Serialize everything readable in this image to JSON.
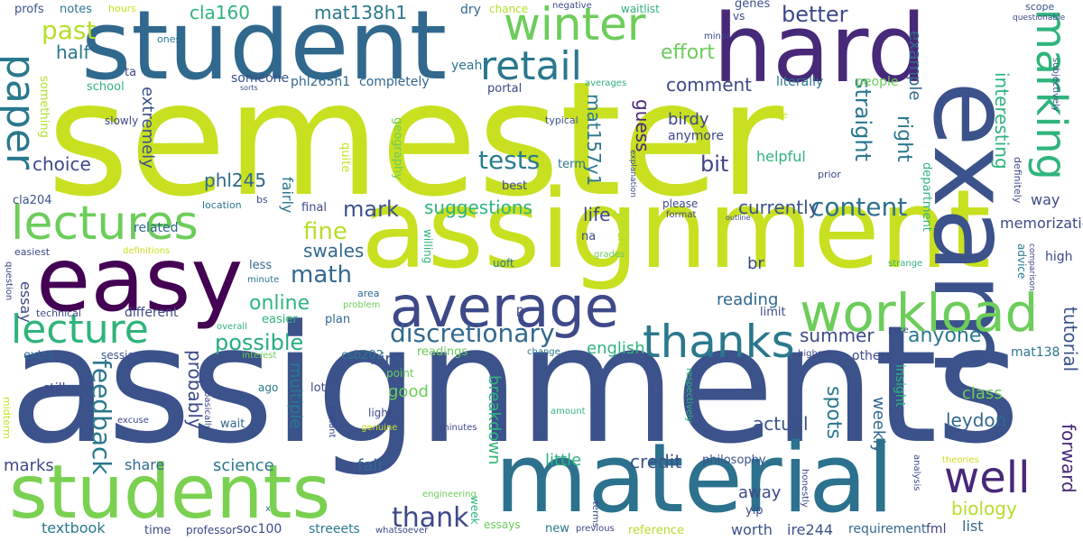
{
  "words": [
    {
      "text": "semester",
      "color": "#c8e020"
    },
    {
      "text": "assignments",
      "color": "#3b528b"
    },
    {
      "text": "assignment",
      "color": "#c8e020"
    },
    {
      "text": "student",
      "color": "#31688e"
    },
    {
      "text": "hard",
      "color": "#482878"
    },
    {
      "text": "exam",
      "color": "#3b528b"
    },
    {
      "text": "students",
      "color": "#7ad151"
    },
    {
      "text": "material",
      "color": "#2c728e"
    },
    {
      "text": "easy",
      "color": "#440154"
    },
    {
      "text": "lectures",
      "color": "#6ccd5a"
    },
    {
      "text": "average",
      "color": "#3e4989"
    },
    {
      "text": "workload",
      "color": "#6ccd5a"
    },
    {
      "text": "winter",
      "color": "#6ccd5a"
    },
    {
      "text": "retail",
      "color": "#2a788e"
    },
    {
      "text": "paper",
      "color": "#2a788e"
    },
    {
      "text": "lecture",
      "color": "#2fb47c"
    },
    {
      "text": "marking",
      "color": "#2fb47c"
    },
    {
      "text": "thanks",
      "color": "#2a788e"
    },
    {
      "text": "well",
      "color": "#482878"
    },
    {
      "text": "content",
      "color": "#2d708e"
    },
    {
      "text": "discretionary",
      "color": "#31688e"
    },
    {
      "text": "possible",
      "color": "#27ad81"
    },
    {
      "text": "tests",
      "color": "#287d8e"
    },
    {
      "text": "feedback",
      "color": "#2a788e"
    },
    {
      "text": "thank",
      "color": "#3e4989"
    },
    {
      "text": "fine",
      "color": "#b5de2b"
    },
    {
      "text": "math",
      "color": "#31688e"
    },
    {
      "text": "past",
      "color": "#b5de2b"
    },
    {
      "text": "half",
      "color": "#2a788e"
    },
    {
      "text": "mat138h1",
      "color": "#2a788e"
    },
    {
      "text": "cla160",
      "color": "#2fb47c"
    },
    {
      "text": "better",
      "color": "#3e4989"
    },
    {
      "text": "effort",
      "color": "#6ccd5a"
    },
    {
      "text": "comment",
      "color": "#3e4989"
    },
    {
      "text": "bit",
      "color": "#414487"
    },
    {
      "text": "birdy",
      "color": "#3e4989"
    },
    {
      "text": "guess",
      "color": "#482878"
    },
    {
      "text": "straight",
      "color": "#2a788e"
    },
    {
      "text": "right",
      "color": "#2a788e"
    },
    {
      "text": "interesting",
      "color": "#2fb47c"
    },
    {
      "text": "example",
      "color": "#31688e"
    },
    {
      "text": "memorization",
      "color": "#3e4989"
    },
    {
      "text": "choice",
      "color": "#3e4989"
    },
    {
      "text": "phl245",
      "color": "#31688e"
    },
    {
      "text": "extremely",
      "color": "#3b528b"
    },
    {
      "text": "mat157y1",
      "color": "#2a788e"
    },
    {
      "text": "years",
      "color": "#b5de2b"
    },
    {
      "text": "mark",
      "color": "#3b528b"
    },
    {
      "text": "suggestions",
      "color": "#2fb47c"
    },
    {
      "text": "currently",
      "color": "#3b528b"
    },
    {
      "text": "life",
      "color": "#3e4989"
    },
    {
      "text": "swales",
      "color": "#31688e"
    },
    {
      "text": "online",
      "color": "#2fb47c"
    },
    {
      "text": "summer",
      "color": "#3e4989"
    },
    {
      "text": "anyone",
      "color": "#2a788e"
    },
    {
      "text": "english",
      "color": "#2fb47c"
    },
    {
      "text": "bird",
      "color": "#3b528b"
    },
    {
      "text": "probably",
      "color": "#3e4989"
    },
    {
      "text": "tutorial",
      "color": "#3b528b"
    },
    {
      "text": "forward",
      "color": "#482878"
    },
    {
      "text": "spots",
      "color": "#2a788e"
    },
    {
      "text": "weekly",
      "color": "#31688e"
    },
    {
      "text": "class",
      "color": "#6ccd5a"
    },
    {
      "text": "leydon",
      "color": "#31688e"
    },
    {
      "text": "actual",
      "color": "#3b528b"
    },
    {
      "text": "breakdown",
      "color": "#2fb47c"
    },
    {
      "text": "multiple",
      "color": "#2a788e"
    },
    {
      "text": "credit",
      "color": "#3b528b"
    },
    {
      "text": "little",
      "color": "#2fb47c"
    },
    {
      "text": "marks",
      "color": "#3e4989"
    },
    {
      "text": "science",
      "color": "#2a788e"
    },
    {
      "text": "share",
      "color": "#31688e"
    },
    {
      "text": "fair",
      "color": "#31688e"
    },
    {
      "text": "away",
      "color": "#3e4989"
    },
    {
      "text": "biology",
      "color": "#b5de2b"
    },
    {
      "text": "list",
      "color": "#31688e"
    },
    {
      "text": "reading",
      "color": "#31688e"
    },
    {
      "text": "good",
      "color": "#6ccd5a"
    },
    {
      "text": "helpful",
      "color": "#2fb47c"
    },
    {
      "text": "br",
      "color": "#3e4989"
    },
    {
      "text": "essay",
      "color": "#3e4989"
    },
    {
      "text": "related",
      "color": "#31688e"
    },
    {
      "text": "fairly",
      "color": "#2a788e"
    },
    {
      "text": "textbook",
      "color": "#2a788e"
    },
    {
      "text": "soc100",
      "color": "#3e4989"
    },
    {
      "text": "streeets",
      "color": "#2a788e"
    },
    {
      "text": "worth",
      "color": "#3b528b"
    },
    {
      "text": "ire244",
      "color": "#3b528b"
    },
    {
      "text": "requirement",
      "color": "#31688e"
    },
    {
      "text": "fml",
      "color": "#414487"
    },
    {
      "text": "profs",
      "color": "#3b528b"
    },
    {
      "text": "notes",
      "color": "#2a788e"
    },
    {
      "text": "hours",
      "color": "#c8e020"
    },
    {
      "text": "dry",
      "color": "#31688e"
    },
    {
      "text": "chance",
      "color": "#b5de2b"
    },
    {
      "text": "negative",
      "color": "#3e4989"
    },
    {
      "text": "waitlist",
      "color": "#2fb47c"
    },
    {
      "text": "genes",
      "color": "#3b528b"
    },
    {
      "text": "vs",
      "color": "#3e4989"
    },
    {
      "text": "scope",
      "color": "#3b528b"
    },
    {
      "text": "questionable",
      "color": "#3e4989"
    },
    {
      "text": "subjectively",
      "color": "#3b528b"
    },
    {
      "text": "someone",
      "color": "#3b528b"
    },
    {
      "text": "phl265h1",
      "color": "#31688e"
    },
    {
      "text": "completely",
      "color": "#31688e"
    },
    {
      "text": "literally",
      "color": "#2a788e"
    },
    {
      "text": "people",
      "color": "#6ccd5a"
    },
    {
      "text": "school",
      "color": "#2fb47c"
    },
    {
      "text": "portal",
      "color": "#3e4989"
    },
    {
      "text": "yeah",
      "color": "#2a788e"
    },
    {
      "text": "ta",
      "color": "#414487"
    },
    {
      "text": "ones",
      "color": "#2a788e"
    },
    {
      "text": "minor",
      "color": "#3e4989"
    },
    {
      "text": "averages",
      "color": "#2fb47c"
    },
    {
      "text": "sorts",
      "color": "#3e4989"
    },
    {
      "text": "typical",
      "color": "#3b528b"
    },
    {
      "text": "case",
      "color": "#c8e020"
    },
    {
      "text": "anymore",
      "color": "#3e4989"
    },
    {
      "text": "slowly",
      "color": "#3e4989"
    },
    {
      "text": "something",
      "color": "#b5de2b"
    },
    {
      "text": "quite",
      "color": "#c8e020"
    },
    {
      "text": "geography",
      "color": "#6ccd5a"
    },
    {
      "text": "term",
      "color": "#2a788e"
    },
    {
      "text": "explanation",
      "color": "#3e4989"
    },
    {
      "text": "prior",
      "color": "#3e4989"
    },
    {
      "text": "definitely",
      "color": "#3e4989"
    },
    {
      "text": "best",
      "color": "#3e4989"
    },
    {
      "text": "department",
      "color": "#2fb47c"
    },
    {
      "text": "way",
      "color": "#3e4989"
    },
    {
      "text": "please",
      "color": "#3e4989"
    },
    {
      "text": "format",
      "color": "#3e4989"
    },
    {
      "text": "outline",
      "color": "#3e4989"
    },
    {
      "text": "cla204",
      "color": "#3b528b"
    },
    {
      "text": "bs",
      "color": "#3e4989"
    },
    {
      "text": "location",
      "color": "#2a788e"
    },
    {
      "text": "final",
      "color": "#3e4989"
    },
    {
      "text": "easiest",
      "color": "#3e4989"
    },
    {
      "text": "definitions",
      "color": "#c8e020"
    },
    {
      "text": "na",
      "color": "#3e4989"
    },
    {
      "text": "grades",
      "color": "#6ccd5a"
    },
    {
      "text": "willing",
      "color": "#2fb47c"
    },
    {
      "text": "uoft",
      "color": "#2a788e"
    },
    {
      "text": "advice",
      "color": "#2a788e"
    },
    {
      "text": "comparison",
      "color": "#3e4989"
    },
    {
      "text": "high",
      "color": "#3e4989"
    },
    {
      "text": "strange",
      "color": "#2fb47c"
    },
    {
      "text": "question",
      "color": "#3e4989"
    },
    {
      "text": "minute",
      "color": "#2a788e"
    },
    {
      "text": "less",
      "color": "#31688e"
    },
    {
      "text": "area",
      "color": "#31688e"
    },
    {
      "text": "problem",
      "color": "#6ccd5a"
    },
    {
      "text": "technical",
      "color": "#3e4989"
    },
    {
      "text": "different",
      "color": "#3e4989"
    },
    {
      "text": "easier",
      "color": "#2fb47c"
    },
    {
      "text": "plan",
      "color": "#31688e"
    },
    {
      "text": "overall",
      "color": "#2fb47c"
    },
    {
      "text": "limit",
      "color": "#3e4989"
    },
    {
      "text": "p",
      "color": "#414487"
    },
    {
      "text": "pure",
      "color": "#3e4989"
    },
    {
      "text": "extra",
      "color": "#31688e"
    },
    {
      "text": "sessiondm",
      "color": "#3b528b"
    },
    {
      "text": "csb202",
      "color": "#2a788e"
    },
    {
      "text": "readings",
      "color": "#6ccd5a"
    },
    {
      "text": "change",
      "color": "#2a788e"
    },
    {
      "text": "interest",
      "color": "#6ccd5a"
    },
    {
      "text": "highest",
      "color": "#3e4989"
    },
    {
      "text": "others",
      "color": "#3e4989"
    },
    {
      "text": "mat138",
      "color": "#2a788e"
    },
    {
      "text": "still",
      "color": "#3e4989"
    },
    {
      "text": "ago",
      "color": "#2a788e"
    },
    {
      "text": "lot",
      "color": "#3e4989"
    },
    {
      "text": "point",
      "color": "#6ccd5a"
    },
    {
      "text": "respectively",
      "color": "#2fb47c"
    },
    {
      "text": "insight",
      "color": "#2fb47c"
    },
    {
      "text": "midterm",
      "color": "#c8e020"
    },
    {
      "text": "basically",
      "color": "#3e4989"
    },
    {
      "text": "excuse",
      "color": "#3e4989"
    },
    {
      "text": "wait",
      "color": "#31688e"
    },
    {
      "text": "blatant",
      "color": "#3e4989"
    },
    {
      "text": "genuine",
      "color": "#c8e020"
    },
    {
      "text": "light",
      "color": "#3e4989"
    },
    {
      "text": "amount",
      "color": "#2fb47c"
    },
    {
      "text": "minutes",
      "color": "#3e4989"
    },
    {
      "text": "theories",
      "color": "#c8e020"
    },
    {
      "text": "analysis",
      "color": "#3e4989"
    },
    {
      "text": "honestly",
      "color": "#3e4989"
    },
    {
      "text": "terms",
      "color": "#3e4989"
    },
    {
      "text": "philosophy",
      "color": "#3b528b"
    },
    {
      "text": "engineering",
      "color": "#6ccd5a"
    },
    {
      "text": "week",
      "color": "#2fb47c"
    },
    {
      "text": "essays",
      "color": "#6ccd5a"
    },
    {
      "text": "new",
      "color": "#2a788e"
    },
    {
      "text": "yip",
      "color": "#3e4989"
    },
    {
      "text": "time",
      "color": "#3e4989"
    },
    {
      "text": "professor",
      "color": "#3e4989"
    },
    {
      "text": "x",
      "color": "#2a788e"
    },
    {
      "text": "whatsoever",
      "color": "#3e4989"
    },
    {
      "text": "previous",
      "color": "#3e4989"
    },
    {
      "text": "reference",
      "color": "#b5de2b"
    }
  ]
}
